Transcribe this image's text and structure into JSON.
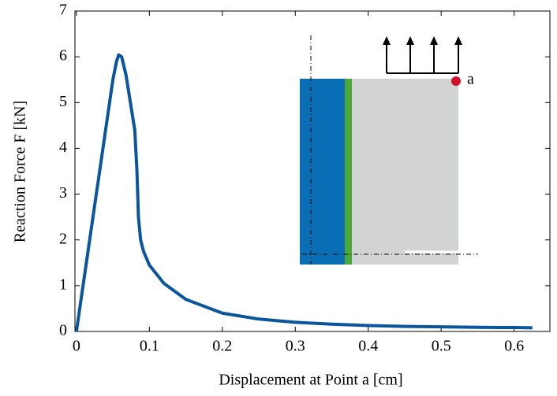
{
  "chart_data": {
    "type": "line",
    "xlabel": "Displacement at Point a [cm]",
    "ylabel": "Reaction Force F [kN]",
    "annotations": [
      "a"
    ],
    "x": [
      0,
      0.01,
      0.02,
      0.03,
      0.04,
      0.05,
      0.055,
      0.058,
      0.062,
      0.068,
      0.075,
      0.08,
      0.083,
      0.085,
      0.088,
      0.092,
      0.1,
      0.12,
      0.15,
      0.2,
      0.25,
      0.3,
      0.35,
      0.4,
      0.45,
      0.5,
      0.55,
      0.6,
      0.625
    ],
    "series": [
      {
        "color": "#0a559b",
        "values": [
          0,
          1.1,
          2.2,
          3.3,
          4.4,
          5.5,
          5.9,
          6.04,
          6.0,
          5.6,
          4.9,
          4.4,
          3.5,
          2.5,
          2.0,
          1.75,
          1.45,
          1.05,
          0.7,
          0.4,
          0.27,
          0.2,
          0.16,
          0.13,
          0.11,
          0.1,
          0.09,
          0.085,
          0.08
        ]
      }
    ],
    "xlim": [
      -0.002,
      0.649
    ],
    "ylim": [
      0,
      7
    ],
    "xticks": [
      0,
      0.1,
      0.2,
      0.3,
      0.4,
      0.5,
      0.6
    ],
    "yticks": [
      0,
      1,
      2,
      3,
      4,
      5,
      6,
      7
    ]
  }
}
